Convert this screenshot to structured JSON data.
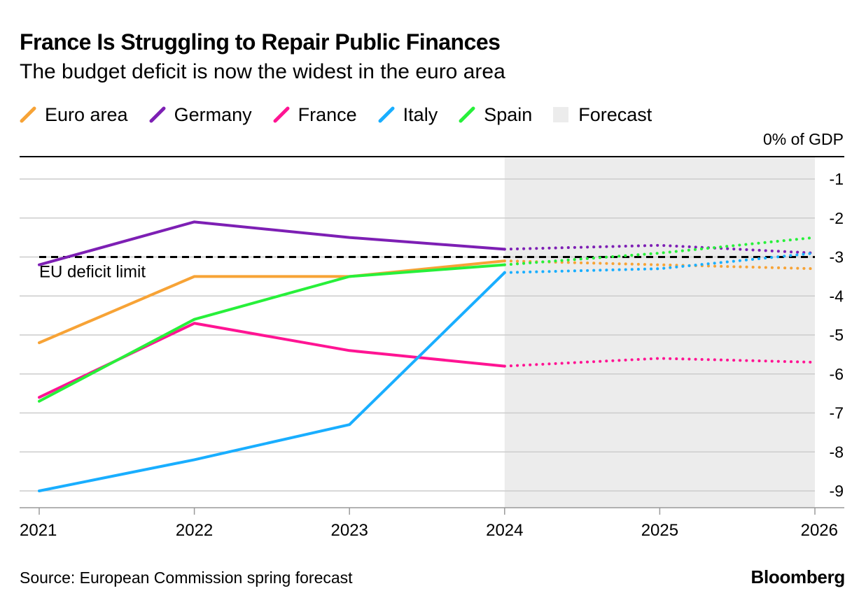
{
  "header": {
    "title": "France Is Struggling to Repair Public Finances",
    "subtitle": "The budget deficit is now the widest in the euro area"
  },
  "legend": {
    "forecast_label": "Forecast"
  },
  "footer": {
    "source": "Source: European Commission spring forecast",
    "brand": "Bloomberg"
  },
  "colors": {
    "forecast_band": "#ececec",
    "grid": "#cccccc",
    "axis": "#000000",
    "reference": "#000000"
  },
  "chart_data": {
    "type": "line",
    "title": "France Is Struggling to Repair Public Finances",
    "subtitle": "The budget deficit is now the widest in the euro area",
    "y_unit_label": "0% of GDP",
    "x": [
      2021,
      2022,
      2023,
      2024,
      2025,
      2026
    ],
    "x_tick_labels": [
      "2021",
      "2022",
      "2023",
      "2024",
      "2025",
      "2026"
    ],
    "ylim": [
      -9.3,
      -0.7
    ],
    "y_ticks": [
      -1,
      -2,
      -3,
      -4,
      -5,
      -6,
      -7,
      -8,
      -9
    ],
    "y_tick_labels": [
      "-1",
      "-2",
      "-3",
      "-4",
      "-5",
      "-6",
      "-7",
      "-8",
      "-9"
    ],
    "grid": true,
    "forecast_range": [
      2024,
      2026
    ],
    "reference_line": {
      "label": "EU deficit limit",
      "value": -3
    },
    "series": [
      {
        "name": "Euro area",
        "color": "#f7a336",
        "values": [
          -5.2,
          -3.5,
          -3.5,
          -3.1,
          -3.2,
          -3.3
        ]
      },
      {
        "name": "Germany",
        "color": "#7d1fb4",
        "values": [
          -3.2,
          -2.1,
          -2.5,
          -2.8,
          -2.7,
          -2.9
        ]
      },
      {
        "name": "France",
        "color": "#ff1493",
        "values": [
          -6.6,
          -4.7,
          -5.4,
          -5.8,
          -5.6,
          -5.7
        ]
      },
      {
        "name": "Italy",
        "color": "#19aeff",
        "values": [
          -9.0,
          -8.2,
          -7.3,
          -3.4,
          -3.3,
          -2.9
        ]
      },
      {
        "name": "Spain",
        "color": "#27f03a",
        "values": [
          -6.7,
          -4.6,
          -3.5,
          -3.2,
          -2.9,
          -2.5
        ]
      }
    ]
  }
}
